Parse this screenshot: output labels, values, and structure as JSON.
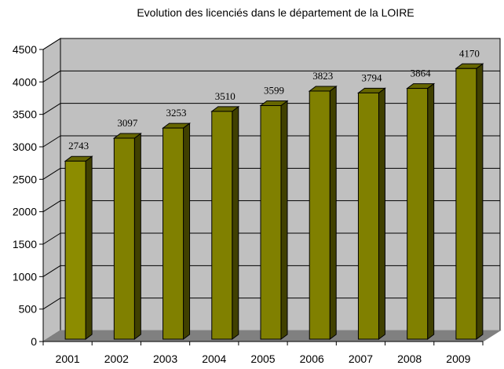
{
  "chart_data": {
    "type": "bar",
    "title": "Evolution des licenciés dans le département de la LOIRE",
    "categories": [
      "2001",
      "2002",
      "2003",
      "2004",
      "2005",
      "2006",
      "2007",
      "2008",
      "2009"
    ],
    "values": [
      2743,
      3097,
      3253,
      3510,
      3599,
      3823,
      3794,
      3864,
      4170
    ],
    "ylim": [
      0,
      4500
    ],
    "yticks": [
      0,
      500,
      1000,
      1500,
      2000,
      2500,
      3000,
      3500,
      4000,
      4500
    ],
    "grid": true,
    "legend": "none",
    "style": "3d-column"
  },
  "colors": {
    "bar_front": "#808000",
    "bar_side": "#404000",
    "bar_top": "#666600",
    "first_bar_front": "#8c8c00",
    "wall": "#c0c0c0",
    "floor": "#808080",
    "grid": "#000000"
  }
}
